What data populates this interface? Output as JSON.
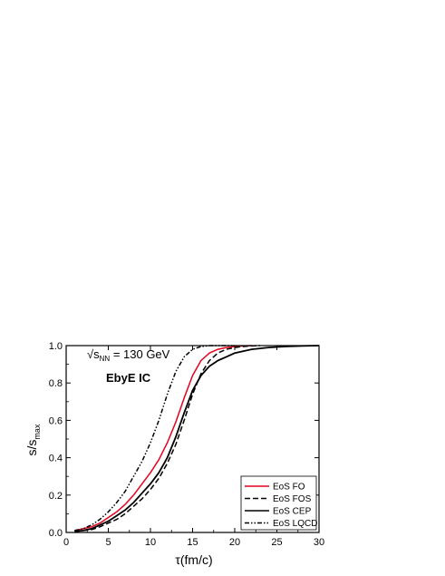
{
  "chart_data": {
    "type": "line",
    "xlabel": "τ(fm/c)",
    "ylabel_main": "s/s",
    "ylabel_sub": "max",
    "xlim": [
      0,
      30
    ],
    "ylim": [
      0.0,
      1.0
    ],
    "xticks": [
      0,
      5,
      10,
      15,
      20,
      25,
      30
    ],
    "yticks": [
      0.0,
      0.2,
      0.4,
      0.6,
      0.8,
      1.0
    ],
    "ytick_labels": [
      "0.0",
      "0.2",
      "0.4",
      "0.6",
      "0.8",
      "1.0"
    ],
    "grid": false,
    "legend_position": "bottom-right",
    "annotations": {
      "energy_prefix": "√s",
      "energy_sub": "NN",
      "energy_value": " = 130 GeV",
      "ic_label": "EbyE IC"
    },
    "series": [
      {
        "name": "EoS FO",
        "color": "#e8001c",
        "dash": "solid",
        "x": [
          1,
          2,
          3,
          4,
          5,
          6,
          7,
          8,
          9,
          10,
          11,
          12,
          13,
          14,
          15,
          16,
          17,
          18,
          19,
          20,
          21,
          22
        ],
        "y": [
          0.01,
          0.02,
          0.03,
          0.05,
          0.08,
          0.11,
          0.15,
          0.2,
          0.26,
          0.32,
          0.39,
          0.48,
          0.59,
          0.72,
          0.84,
          0.92,
          0.96,
          0.98,
          0.99,
          0.995,
          0.998,
          1.0
        ]
      },
      {
        "name": "EoS FOS",
        "color": "#000000",
        "dash": "dashed",
        "x": [
          1,
          2,
          3,
          4,
          5,
          6,
          7,
          8,
          9,
          10,
          11,
          12,
          13,
          14,
          15,
          16,
          17,
          18,
          19,
          20,
          21,
          22,
          23
        ],
        "y": [
          0.005,
          0.01,
          0.015,
          0.03,
          0.05,
          0.07,
          0.1,
          0.14,
          0.18,
          0.23,
          0.29,
          0.37,
          0.47,
          0.6,
          0.74,
          0.85,
          0.92,
          0.96,
          0.98,
          0.99,
          0.995,
          0.998,
          1.0
        ]
      },
      {
        "name": "EoS CEP",
        "color": "#000000",
        "dash": "solid",
        "x": [
          1,
          2,
          3,
          4,
          5,
          6,
          7,
          8,
          9,
          10,
          11,
          12,
          13,
          14,
          15,
          16,
          17,
          18,
          19,
          20,
          22,
          24,
          26,
          28,
          30
        ],
        "y": [
          0.005,
          0.01,
          0.02,
          0.04,
          0.06,
          0.09,
          0.12,
          0.16,
          0.21,
          0.26,
          0.32,
          0.4,
          0.51,
          0.64,
          0.76,
          0.84,
          0.89,
          0.92,
          0.94,
          0.96,
          0.98,
          0.99,
          0.995,
          0.998,
          1.0
        ]
      },
      {
        "name": "EoS LQCD",
        "color": "#000000",
        "dash": "dashdotdot",
        "x": [
          1,
          2,
          3,
          4,
          5,
          6,
          7,
          8,
          9,
          10,
          11,
          12,
          13,
          14,
          15,
          16,
          17,
          18,
          19,
          20
        ],
        "y": [
          0.01,
          0.02,
          0.04,
          0.07,
          0.11,
          0.16,
          0.22,
          0.3,
          0.38,
          0.48,
          0.6,
          0.74,
          0.86,
          0.94,
          0.98,
          0.995,
          1.0,
          1.0,
          1.0,
          1.0
        ]
      }
    ]
  }
}
